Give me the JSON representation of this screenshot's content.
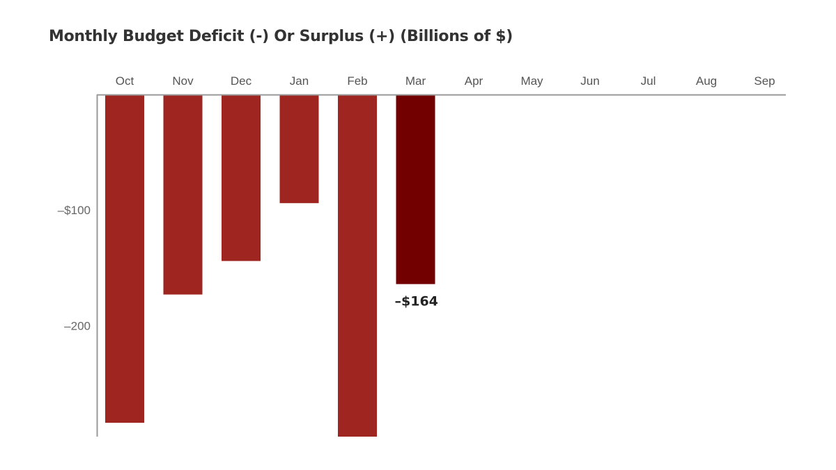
{
  "chart_data": {
    "type": "bar",
    "title": "Monthly Budget Deficit (-) Or Surplus (+) (Billions of $)",
    "categories": [
      "Oct",
      "Nov",
      "Dec",
      "Jan",
      "Feb",
      "Mar",
      "Apr",
      "May",
      "Jun",
      "Jul",
      "Aug",
      "Sep"
    ],
    "values": [
      -284,
      -173,
      -144,
      -94,
      -296,
      -164,
      null,
      null,
      null,
      null,
      null,
      null
    ],
    "highlight_index": 5,
    "highlight_label": "–$164",
    "y_ticks": [
      {
        "value": -100,
        "label": "–$100"
      },
      {
        "value": -200,
        "label": "–200"
      }
    ],
    "ylim": [
      -296,
      0
    ],
    "xlabel": "",
    "ylabel": "",
    "grid": false,
    "colors": {
      "bar": "#9e2520",
      "highlight_bar": "#730000",
      "axis": "#999999"
    }
  }
}
